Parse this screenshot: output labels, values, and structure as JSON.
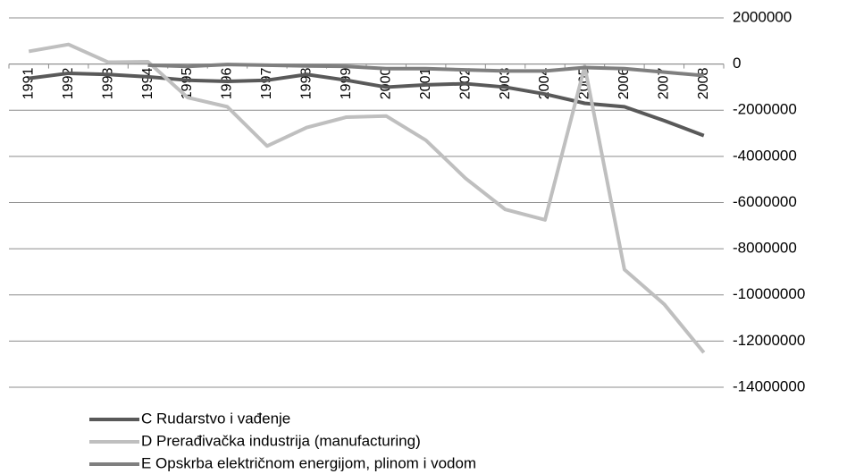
{
  "chart_data": {
    "type": "line",
    "categories": [
      "1991",
      "1992",
      "1993",
      "1994",
      "1995",
      "1996",
      "1997",
      "1998",
      "1999",
      "2000",
      "2001",
      "2002",
      "2003",
      "2004",
      "2005",
      "2006",
      "2007",
      "2008"
    ],
    "series": [
      {
        "name": "C Rudarstvo i vađenje",
        "color": "#595959",
        "values": [
          -620000,
          -400000,
          -450000,
          -550000,
          -700000,
          -750000,
          -700000,
          -450000,
          -700000,
          -1000000,
          -900000,
          -850000,
          -1000000,
          -1300000,
          -1700000,
          -1850000,
          -2450000,
          -3100000
        ]
      },
      {
        "name": "D Prerađivačka industrija (manufacturing)",
        "color": "#bfbfbf",
        "values": [
          550000,
          850000,
          80000,
          100000,
          -1450000,
          -1850000,
          -3550000,
          -2750000,
          -2300000,
          -2250000,
          -3300000,
          -4950000,
          -6300000,
          -6750000,
          -100000,
          -8900000,
          -10400000,
          -12500000
        ]
      },
      {
        "name": "E Opskrba električnom energijom, plinom i vodom",
        "color": "#7f7f7f",
        "values": [
          null,
          null,
          null,
          -50000,
          -100000,
          -20000,
          -50000,
          -80000,
          -100000,
          -200000,
          -200000,
          -250000,
          -300000,
          -300000,
          -150000,
          -200000,
          -350000,
          -500000
        ]
      }
    ],
    "ylim": [
      -14000000,
      2000000
    ],
    "yticks": [
      -14000000,
      -12000000,
      -10000000,
      -8000000,
      -6000000,
      -4000000,
      -2000000,
      0,
      2000000
    ],
    "grid": true,
    "legend": "bottom"
  }
}
